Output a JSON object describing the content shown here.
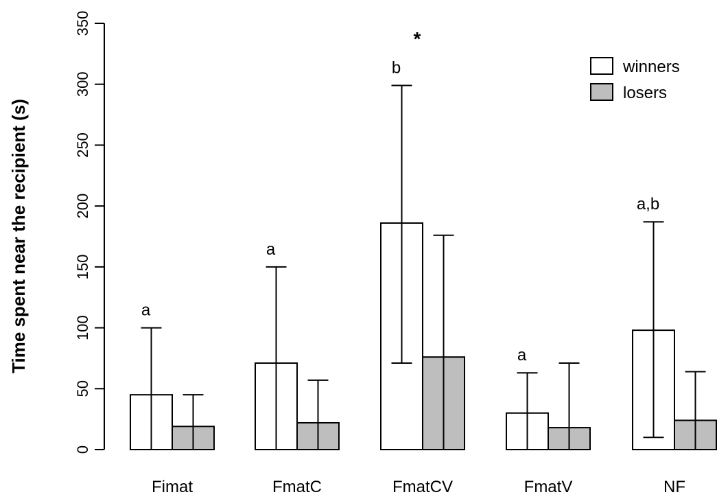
{
  "chart_data": {
    "type": "bar",
    "ylabel": "Time spent near the recipient (s)",
    "xlabel": "",
    "ylim": [
      0,
      350
    ],
    "yticks": [
      0,
      50,
      100,
      150,
      200,
      250,
      300,
      350
    ],
    "categories": [
      "Fimat",
      "FmatC",
      "FmatCV",
      "FmatV",
      "NF"
    ],
    "series": [
      {
        "name": "winners",
        "color": "#ffffff",
        "values": [
          45,
          71,
          186,
          30,
          98
        ],
        "error_low": [
          0,
          0,
          71,
          0,
          10
        ],
        "error_high": [
          100,
          150,
          299,
          63,
          187
        ]
      },
      {
        "name": "losers",
        "color": "#bebebe",
        "values": [
          19,
          22,
          76,
          18,
          24
        ],
        "error_low": [
          0,
          0,
          0,
          0,
          0
        ],
        "error_high": [
          45,
          57,
          176,
          71,
          64
        ]
      }
    ],
    "annotations": [
      {
        "category": "Fimat",
        "series": "winners",
        "text": "a"
      },
      {
        "category": "FmatC",
        "series": "winners",
        "text": "a"
      },
      {
        "category": "FmatCV",
        "series": "winners",
        "text": "b"
      },
      {
        "category": "FmatV",
        "series": "winners",
        "text": "a"
      },
      {
        "category": "NF",
        "series": "winners",
        "text": "a,b"
      }
    ],
    "significance": [
      {
        "category": "FmatCV",
        "text": "*"
      }
    ],
    "legend": {
      "placement": "top-right"
    },
    "grid": false
  }
}
